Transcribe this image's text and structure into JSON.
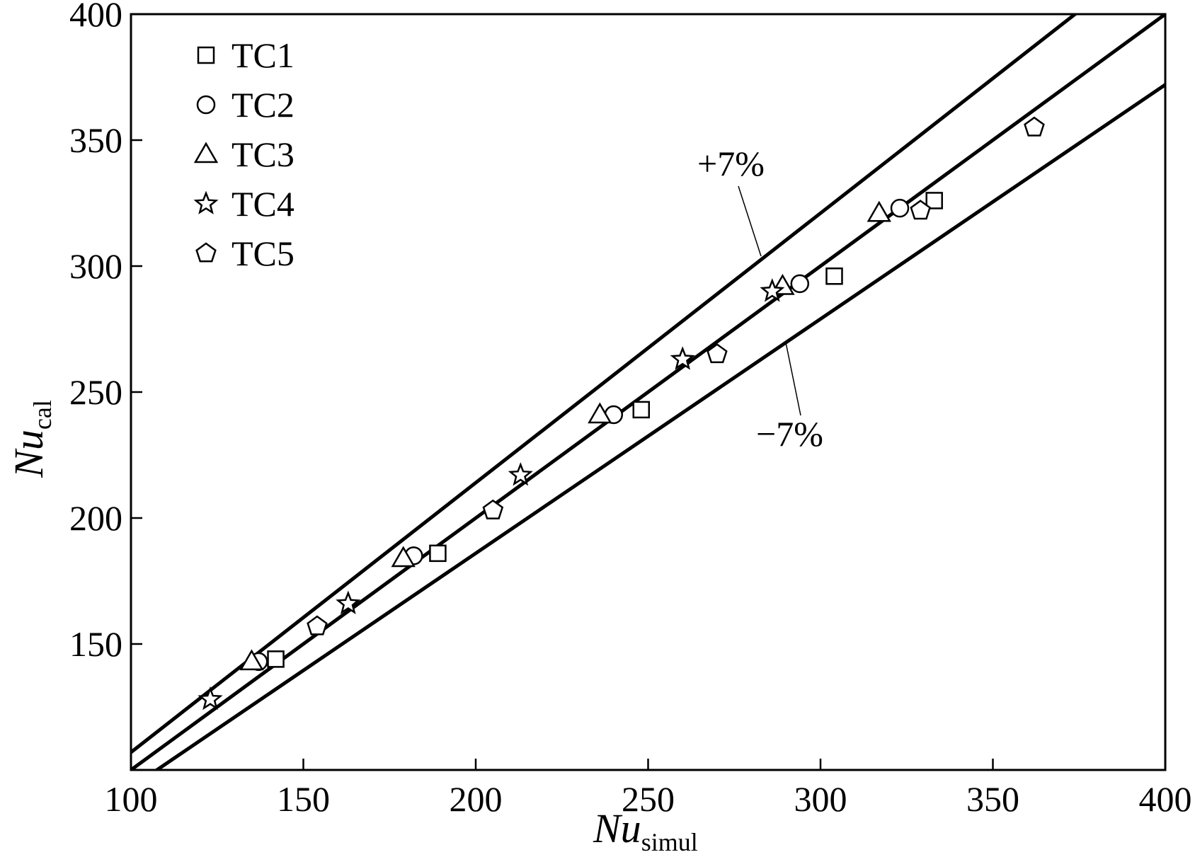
{
  "chart_data": {
    "type": "scatter",
    "title": "",
    "xlabel": {
      "main": "Nu",
      "sub": "simul"
    },
    "ylabel": {
      "main": "Nu",
      "sub": "cal"
    },
    "xlim": [
      100,
      400
    ],
    "ylim": [
      100,
      400
    ],
    "xticks": [
      "100",
      "150",
      "200",
      "250",
      "300",
      "350",
      "400"
    ],
    "yticks": [
      "150",
      "200",
      "250",
      "300",
      "350",
      "400"
    ],
    "grid": false,
    "legend_position": "top-left",
    "reference_lines": [
      {
        "label": "+7%",
        "slope": 1.07
      },
      {
        "label": "",
        "slope": 1.0
      },
      {
        "label": "−7%",
        "slope": 0.93
      }
    ],
    "series": [
      {
        "name": "TC1",
        "marker": "square",
        "points": [
          [
            142,
            144
          ],
          [
            189,
            186
          ],
          [
            248,
            243
          ],
          [
            304,
            296
          ],
          [
            333,
            326
          ]
        ]
      },
      {
        "name": "TC2",
        "marker": "circle",
        "points": [
          [
            137,
            143
          ],
          [
            182,
            185
          ],
          [
            240,
            241
          ],
          [
            294,
            293
          ],
          [
            323,
            323
          ]
        ]
      },
      {
        "name": "TC3",
        "marker": "triangle",
        "points": [
          [
            135,
            143
          ],
          [
            179,
            184
          ],
          [
            236,
            241
          ],
          [
            289,
            292
          ],
          [
            317,
            321
          ]
        ]
      },
      {
        "name": "TC4",
        "marker": "star",
        "points": [
          [
            123,
            128
          ],
          [
            163,
            166
          ],
          [
            213,
            217
          ],
          [
            260,
            263
          ],
          [
            286,
            290
          ]
        ]
      },
      {
        "name": "TC5",
        "marker": "pentagon",
        "points": [
          [
            154,
            157
          ],
          [
            205,
            203
          ],
          [
            270,
            265
          ],
          [
            329,
            322
          ],
          [
            362,
            355
          ]
        ]
      }
    ]
  }
}
